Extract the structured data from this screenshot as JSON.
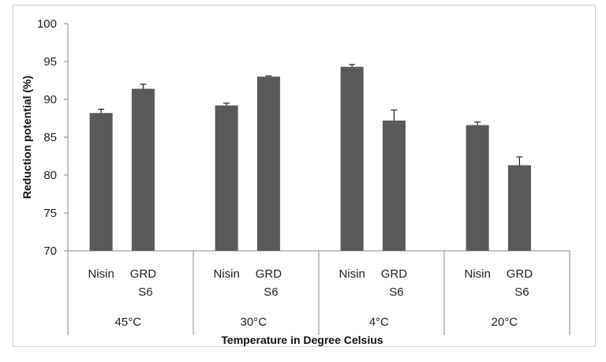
{
  "chart_data": {
    "type": "bar",
    "title": "",
    "xlabel": "Temperature in Degree Celsius",
    "ylabel": "Reduction potential (%)",
    "ylim": [
      70,
      100
    ],
    "yticks": [
      70,
      75,
      80,
      85,
      90,
      95,
      100
    ],
    "grid": false,
    "legend": "none",
    "bar_color": "#595959",
    "groups": [
      {
        "label": "45°C",
        "bars": [
          {
            "label_lines": [
              "Nisin"
            ],
            "value": 88.2,
            "error": 0.5
          },
          {
            "label_lines": [
              "GRD",
              "S6"
            ],
            "value": 91.4,
            "error": 0.6
          }
        ]
      },
      {
        "label": "30°C",
        "bars": [
          {
            "label_lines": [
              "Nisin"
            ],
            "value": 89.2,
            "error": 0.3
          },
          {
            "label_lines": [
              "GRD",
              "S6"
            ],
            "value": 93.0,
            "error": 0.1
          }
        ]
      },
      {
        "label": "4°C",
        "bars": [
          {
            "label_lines": [
              "Nisin"
            ],
            "value": 94.3,
            "error": 0.3
          },
          {
            "label_lines": [
              "GRD",
              "S6"
            ],
            "value": 87.2,
            "error": 1.4
          }
        ]
      },
      {
        "label": "20°C",
        "bars": [
          {
            "label_lines": [
              "Nisin"
            ],
            "value": 86.6,
            "error": 0.4
          },
          {
            "label_lines": [
              "GRD",
              "S6"
            ],
            "value": 81.3,
            "error": 1.1
          }
        ]
      }
    ]
  }
}
